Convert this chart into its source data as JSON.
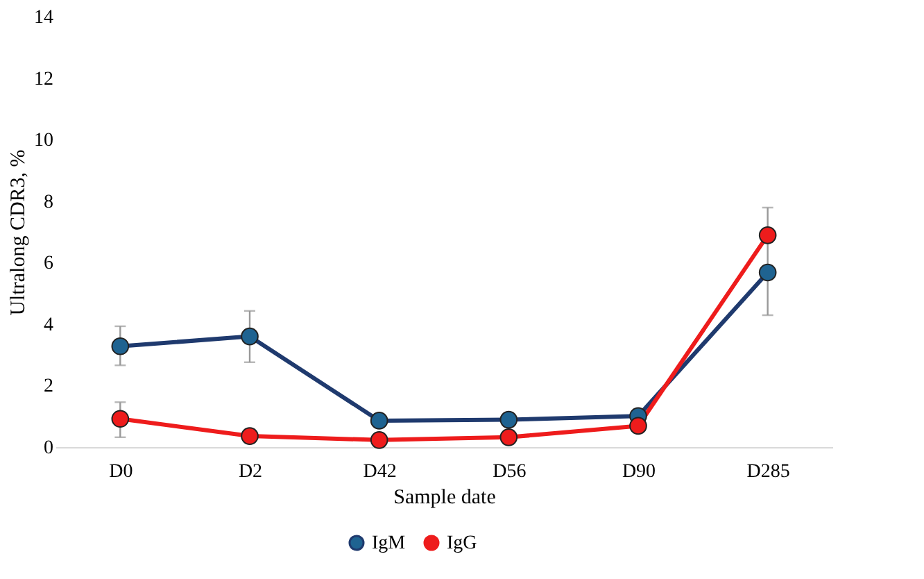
{
  "chart_data": {
    "type": "line",
    "xlabel": "Sample date",
    "ylabel": "Ultralong CDR3, %",
    "categories": [
      "D0",
      "D2",
      "D42",
      "D56",
      "D90",
      "D285"
    ],
    "series": [
      {
        "name": "IgM",
        "color": "#1f3a6e",
        "values": [
          3.28,
          3.6,
          0.86,
          0.89,
          1.01,
          5.68
        ],
        "errors": [
          [
            2.66,
            3.93
          ],
          [
            2.76,
            4.43
          ],
          null,
          null,
          null,
          [
            4.29,
            7.79
          ]
        ]
      },
      {
        "name": "IgG",
        "color": "#ee1c1c",
        "values": [
          0.92,
          0.36,
          0.23,
          0.32,
          0.69,
          6.89
        ],
        "errors": [
          [
            0.32,
            1.46
          ],
          null,
          null,
          null,
          null,
          null
        ]
      }
    ],
    "ylim": [
      0,
      14
    ],
    "yticks": [
      0,
      2,
      4,
      6,
      8,
      10,
      12,
      14
    ],
    "marker": "circle",
    "line_style": "solid",
    "legend": "bottom",
    "grid": false
  }
}
